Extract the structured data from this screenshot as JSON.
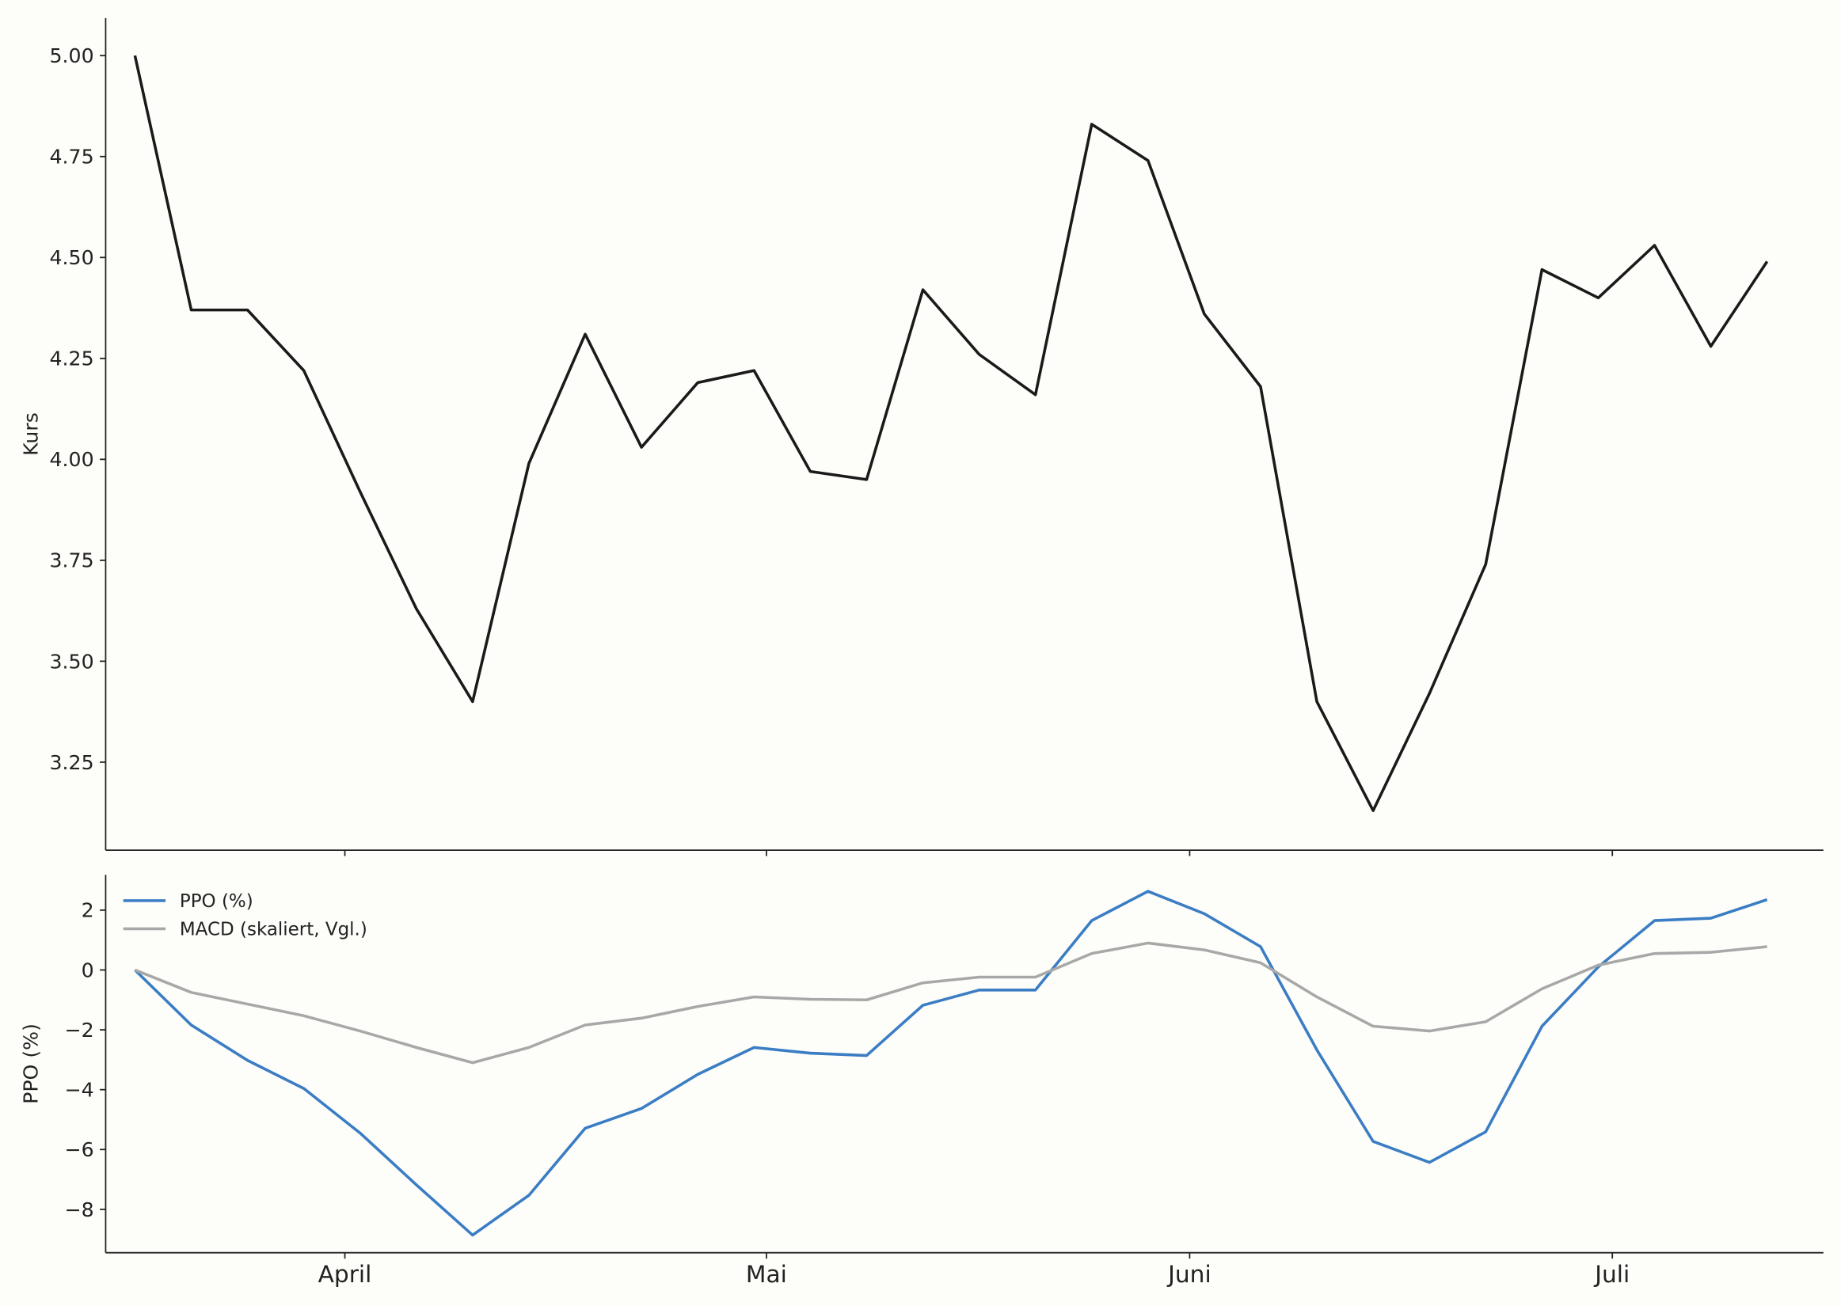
{
  "chart_data": [
    {
      "type": "line",
      "ylabel": "Kurs",
      "color": "#1a1a1a",
      "x": [
        0,
        1,
        2,
        3,
        4,
        5,
        6,
        7,
        8,
        9,
        10,
        11,
        12,
        13,
        14,
        15,
        16,
        17,
        18,
        19,
        20,
        21,
        22,
        23,
        24,
        25,
        26,
        27,
        28,
        29
      ],
      "values": [
        5.0,
        4.37,
        4.37,
        4.22,
        3.92,
        3.63,
        3.4,
        3.99,
        4.31,
        4.03,
        4.19,
        4.22,
        3.97,
        3.95,
        4.42,
        4.26,
        4.16,
        4.83,
        4.74,
        4.36,
        4.18,
        3.4,
        3.13,
        3.42,
        3.74,
        4.47,
        4.4,
        4.53,
        4.28,
        4.49
      ],
      "xlim": [
        -0.52,
        30.0
      ],
      "ylim": [
        3.032,
        5.093
      ],
      "yticks": [
        {
          "value": 3.25,
          "label": "3.25"
        },
        {
          "value": 3.5,
          "label": "3.50"
        },
        {
          "value": 3.75,
          "label": "3.75"
        },
        {
          "value": 4.0,
          "label": "4.00"
        },
        {
          "value": 4.25,
          "label": "4.25"
        },
        {
          "value": 4.5,
          "label": "4.50"
        },
        {
          "value": 4.75,
          "label": "4.75"
        },
        {
          "value": 5.0,
          "label": "5.00"
        }
      ]
    },
    {
      "type": "line",
      "ylabel": "PPO (%)",
      "legend": "upper left",
      "x": [
        0,
        1,
        2,
        3,
        4,
        5,
        6,
        7,
        8,
        9,
        10,
        11,
        12,
        13,
        14,
        15,
        16,
        17,
        18,
        19,
        20,
        21,
        22,
        23,
        24,
        25,
        26,
        27,
        28,
        29
      ],
      "series": [
        {
          "name": "PPO (%)",
          "color": "#3a7dc4",
          "values": [
            0,
            -1.84,
            -3.02,
            -3.96,
            -5.45,
            -7.18,
            -8.86,
            -7.53,
            -5.29,
            -4.63,
            -3.49,
            -2.59,
            -2.78,
            -2.86,
            -1.18,
            -0.67,
            -0.67,
            1.65,
            2.63,
            1.88,
            0.78,
            -2.67,
            -5.73,
            -6.43,
            -5.41,
            -1.88,
            0.1,
            1.65,
            1.73,
            2.35
          ]
        },
        {
          "name": "MACD (skaliert, Vgl.)",
          "color": "#a8a8a8",
          "values": [
            0,
            -0.75,
            -1.14,
            -1.53,
            -2.04,
            -2.59,
            -3.1,
            -2.59,
            -1.84,
            -1.61,
            -1.22,
            -0.9,
            -0.98,
            -1.0,
            -0.43,
            -0.24,
            -0.24,
            0.55,
            0.9,
            0.67,
            0.24,
            -0.9,
            -1.88,
            -2.04,
            -1.73,
            -0.63,
            0.16,
            0.55,
            0.59,
            0.78
          ]
        }
      ],
      "xlim": [
        -0.52,
        30.0
      ],
      "ylim": [
        -9.45,
        3.18
      ],
      "xticks": [
        {
          "value": 3.73,
          "label": "April"
        },
        {
          "value": 11.22,
          "label": "Mai"
        },
        {
          "value": 18.74,
          "label": "Juni"
        },
        {
          "value": 26.25,
          "label": "Juli"
        }
      ],
      "yticks": [
        {
          "value": -8,
          "label": "−8"
        },
        {
          "value": -6,
          "label": "−6"
        },
        {
          "value": -4,
          "label": "−4"
        },
        {
          "value": -2,
          "label": "−2"
        },
        0,
        2
      ]
    }
  ]
}
